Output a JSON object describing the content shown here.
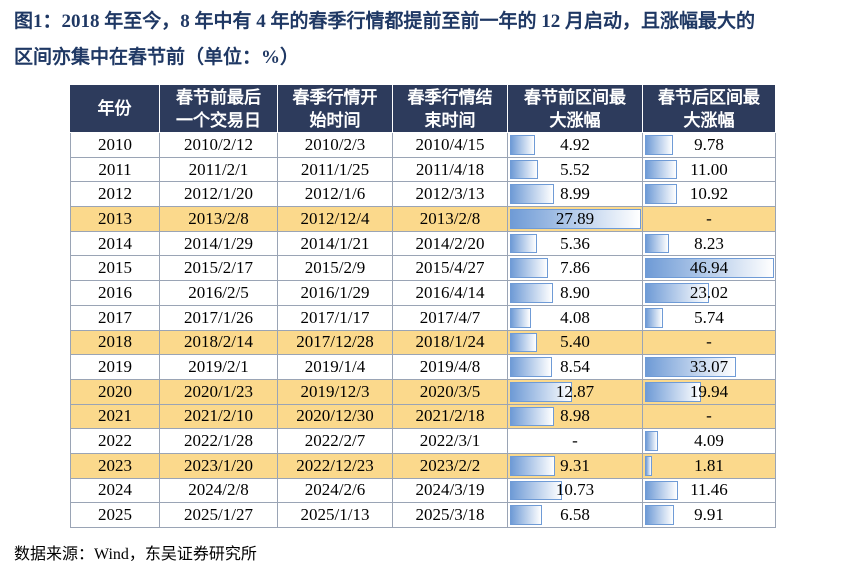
{
  "header": {
    "title_line1": "图1：2018 年至今，8 年中有 4 年的春季行情都提前至前一年的 12 月启动，且涨幅最大的",
    "title_line2": "区间亦集中在春节前（单位：%）"
  },
  "table": {
    "columns": [
      "年份",
      "春节前最后一个交易日",
      "春季行情开始时间",
      "春季行情结束时间",
      "春节前区间最大涨幅",
      "春节后区间最大涨幅"
    ],
    "highlight_color": "#fbd98c",
    "header_color": "#2d3b5c",
    "bar_color": "#6f9bd6",
    "rows": [
      {
        "cells": [
          "2010",
          "2010/2/12",
          "2010/2/3",
          "2010/4/15",
          "4.92",
          "9.78"
        ]
      },
      {
        "cells": [
          "2011",
          "2011/2/1",
          "2011/1/25",
          "2011/4/18",
          "5.52",
          "11.00"
        ]
      },
      {
        "cells": [
          "2012",
          "2012/1/20",
          "2012/1/6",
          "2012/3/13",
          "8.99",
          "10.92"
        ]
      },
      {
        "cells": [
          "2013",
          "2013/2/8",
          "2012/12/4",
          "2013/2/8",
          "27.89",
          "-"
        ],
        "highlight": true
      },
      {
        "cells": [
          "2014",
          "2014/1/29",
          "2014/1/21",
          "2014/2/20",
          "5.36",
          "8.23"
        ]
      },
      {
        "cells": [
          "2015",
          "2015/2/17",
          "2015/2/9",
          "2015/4/27",
          "7.86",
          "46.94"
        ]
      },
      {
        "cells": [
          "2016",
          "2016/2/5",
          "2016/1/29",
          "2016/4/14",
          "8.90",
          "23.02"
        ]
      },
      {
        "cells": [
          "2017",
          "2017/1/26",
          "2017/1/17",
          "2017/4/7",
          "4.08",
          "5.74"
        ]
      },
      {
        "cells": [
          "2018",
          "2018/2/14",
          "2017/12/28",
          "2018/1/24",
          "5.40",
          "-"
        ],
        "highlight": true
      },
      {
        "cells": [
          "2019",
          "2019/2/1",
          "2019/1/4",
          "2019/4/8",
          "8.54",
          "33.07"
        ]
      },
      {
        "cells": [
          "2020",
          "2020/1/23",
          "2019/12/3",
          "2020/3/5",
          "12.87",
          "19.94"
        ],
        "highlight": true
      },
      {
        "cells": [
          "2021",
          "2021/2/10",
          "2020/12/30",
          "2021/2/18",
          "8.98",
          "-"
        ],
        "highlight": true
      },
      {
        "cells": [
          "2022",
          "2022/1/28",
          "2022/2/7",
          "2022/3/1",
          "-",
          "4.09"
        ]
      },
      {
        "cells": [
          "2023",
          "2023/1/20",
          "2022/12/23",
          "2023/2/2",
          "9.31",
          "1.81"
        ],
        "highlight": true
      },
      {
        "cells": [
          "2024",
          "2024/2/8",
          "2024/2/6",
          "2024/3/19",
          "10.73",
          "11.46"
        ]
      },
      {
        "cells": [
          "2025",
          "2025/1/27",
          "2025/1/13",
          "2025/3/18",
          "6.58",
          "9.91"
        ]
      }
    ]
  },
  "footer": {
    "source": "数据来源：Wind，东吴证券研究所"
  }
}
